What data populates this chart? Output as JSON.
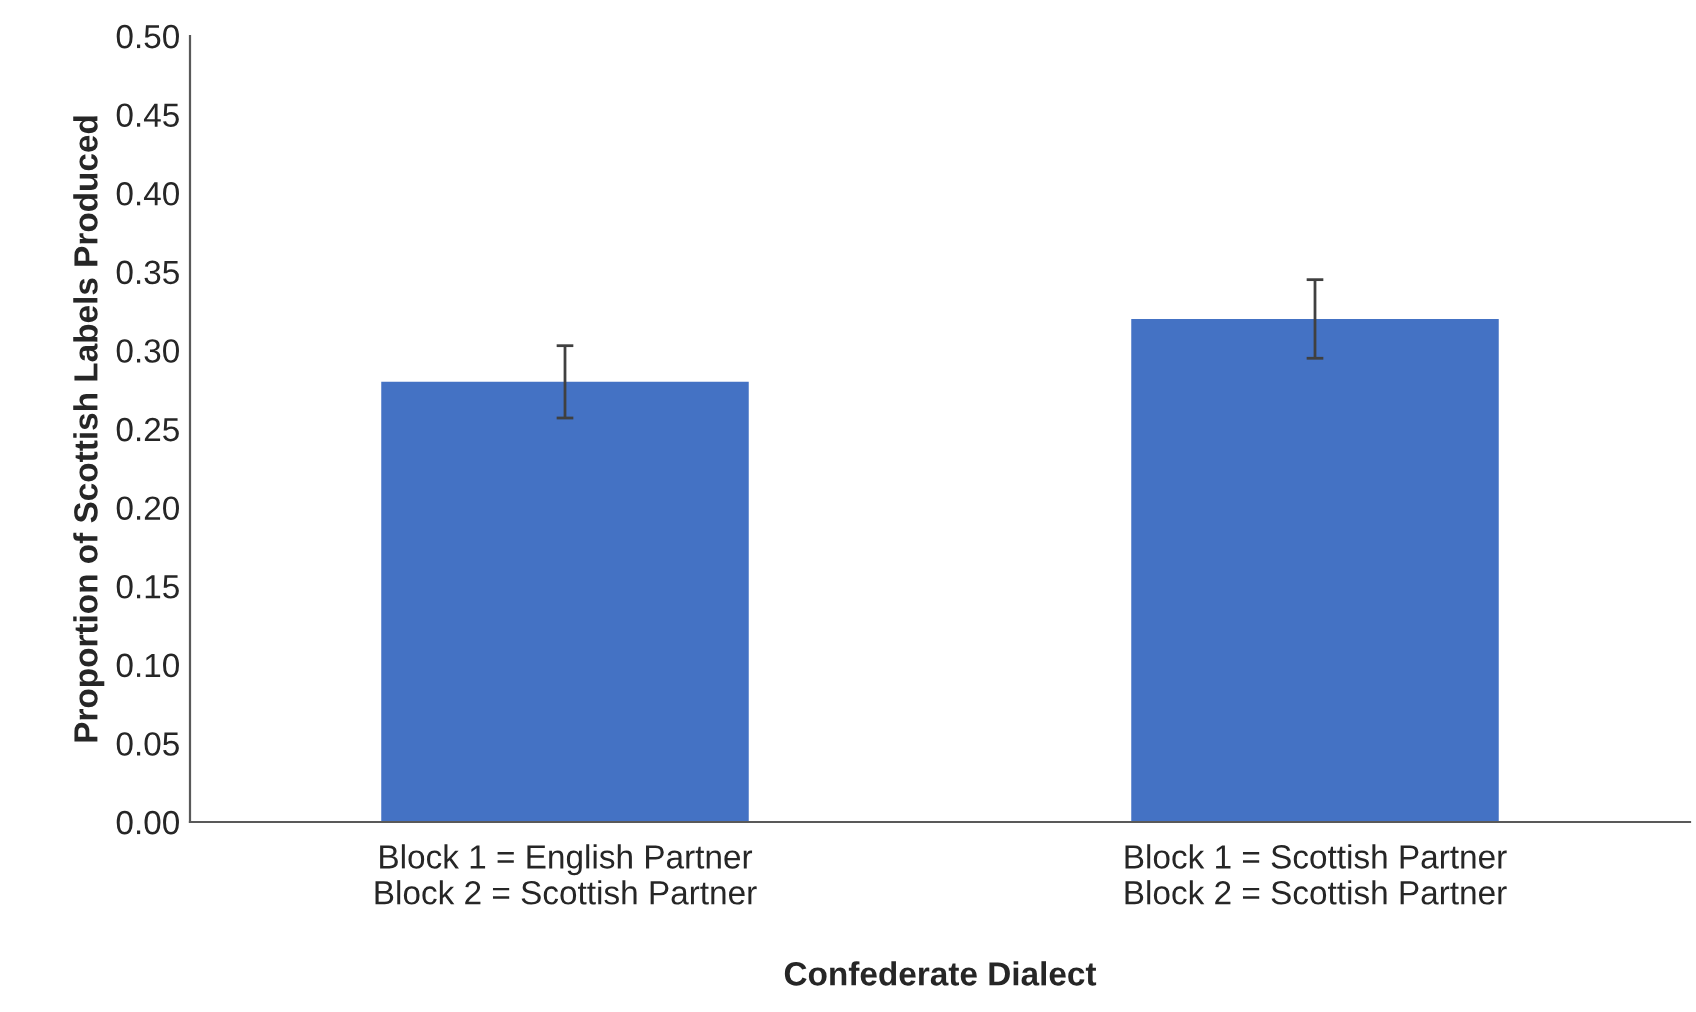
{
  "chart_data": {
    "type": "bar",
    "xlabel": "Confederate Dialect",
    "ylabel": "Proportion of Scottish Labels Produced",
    "categories": [
      "Block 1 = English Partner\nBlock 2 = Scottish Partner",
      "Block 1 = Scottish Partner\nBlock 2 = Scottish Partner"
    ],
    "values": [
      0.28,
      0.32
    ],
    "errors": [
      0.023,
      0.025
    ],
    "color": "#4472c4",
    "ylim": [
      0,
      0.5
    ],
    "yticks": [
      {
        "value": 0,
        "label": "0.00"
      },
      {
        "value": 0.05,
        "label": "0.05"
      },
      {
        "value": 0.1,
        "label": "0.10"
      },
      {
        "value": 0.15,
        "label": "0.15"
      },
      {
        "value": 0.2,
        "label": "0.20"
      },
      {
        "value": 0.25,
        "label": "0.25"
      },
      {
        "value": 0.3,
        "label": "0.30"
      },
      {
        "value": 0.35,
        "label": "0.35"
      },
      {
        "value": 0.4,
        "label": "0.40"
      },
      {
        "value": 0.45,
        "label": "0.45"
      },
      {
        "value": 0.5,
        "label": "0.50"
      }
    ],
    "grid": false,
    "legend": false
  }
}
